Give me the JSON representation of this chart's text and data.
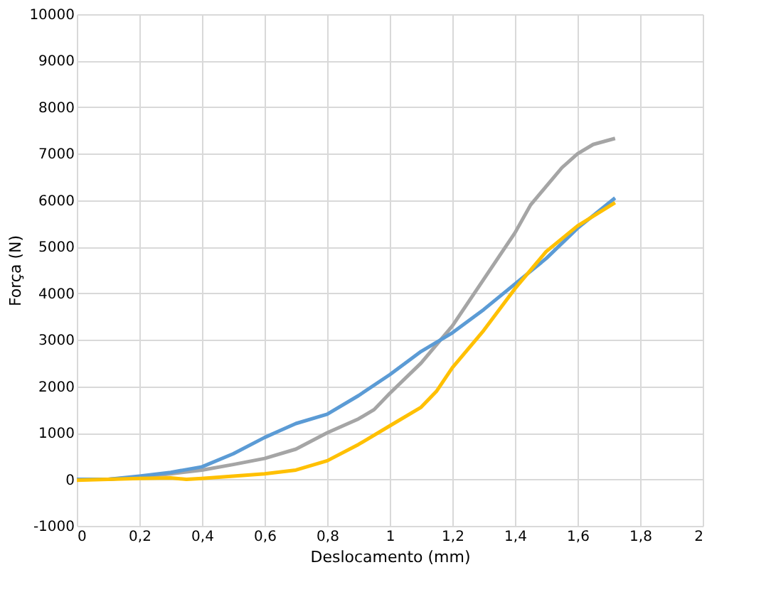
{
  "chart_data": {
    "type": "line",
    "xlabel": "Deslocamento (mm)",
    "ylabel": "Força (N)",
    "xlim": [
      0,
      2
    ],
    "xticks": [
      0,
      {
        "value": 0.2,
        "label": "0,2"
      },
      {
        "value": 0.4,
        "label": "0,4"
      },
      {
        "value": 0.6,
        "label": "0,6"
      },
      {
        "value": 0.8,
        "label": "0,8"
      },
      1,
      {
        "value": 1.2,
        "label": "1,2"
      },
      {
        "value": 1.4,
        "label": "1,4"
      },
      {
        "value": 1.6,
        "label": "1,6"
      },
      {
        "value": 1.8,
        "label": "1,8"
      },
      2
    ],
    "ylim": [
      -1000,
      10000
    ],
    "yticks": [
      -1000,
      0,
      1000,
      2000,
      3000,
      4000,
      5000,
      6000,
      7000,
      8000,
      9000,
      10000
    ],
    "grid": true,
    "legend": false,
    "marker": "none",
    "line_style": "solid",
    "series": [
      {
        "color": "#a5a5a5",
        "x": [
          0,
          0.1,
          0.2,
          0.3,
          0.4,
          0.5,
          0.6,
          0.7,
          0.8,
          0.9,
          0.95,
          1.0,
          1.1,
          1.2,
          1.3,
          1.4,
          1.45,
          1.5,
          1.55,
          1.6,
          1.65,
          1.72
        ],
        "values": [
          0,
          0,
          50,
          120,
          200,
          320,
          450,
          650,
          1000,
          1300,
          1500,
          1850,
          2500,
          3300,
          4300,
          5300,
          5900,
          6300,
          6700,
          7000,
          7200,
          7330
        ]
      },
      {
        "color": "#5b9bd5",
        "x": [
          0,
          0.1,
          0.2,
          0.3,
          0.4,
          0.5,
          0.6,
          0.65,
          0.7,
          0.8,
          0.9,
          1.0,
          1.1,
          1.2,
          1.3,
          1.4,
          1.5,
          1.6,
          1.72
        ],
        "values": [
          0,
          0,
          70,
          150,
          270,
          550,
          900,
          1050,
          1200,
          1400,
          1800,
          2250,
          2750,
          3150,
          3650,
          4200,
          4750,
          5400,
          6050
        ]
      },
      {
        "color": "#ffc000",
        "x": [
          0,
          0.2,
          0.3,
          0.35,
          0.4,
          0.5,
          0.6,
          0.7,
          0.8,
          0.9,
          1.0,
          1.1,
          1.15,
          1.2,
          1.3,
          1.4,
          1.5,
          1.6,
          1.72
        ],
        "values": [
          -20,
          20,
          30,
          0,
          20,
          70,
          120,
          200,
          400,
          750,
          1150,
          1550,
          1900,
          2400,
          3200,
          4100,
          4900,
          5450,
          5950
        ]
      }
    ]
  }
}
